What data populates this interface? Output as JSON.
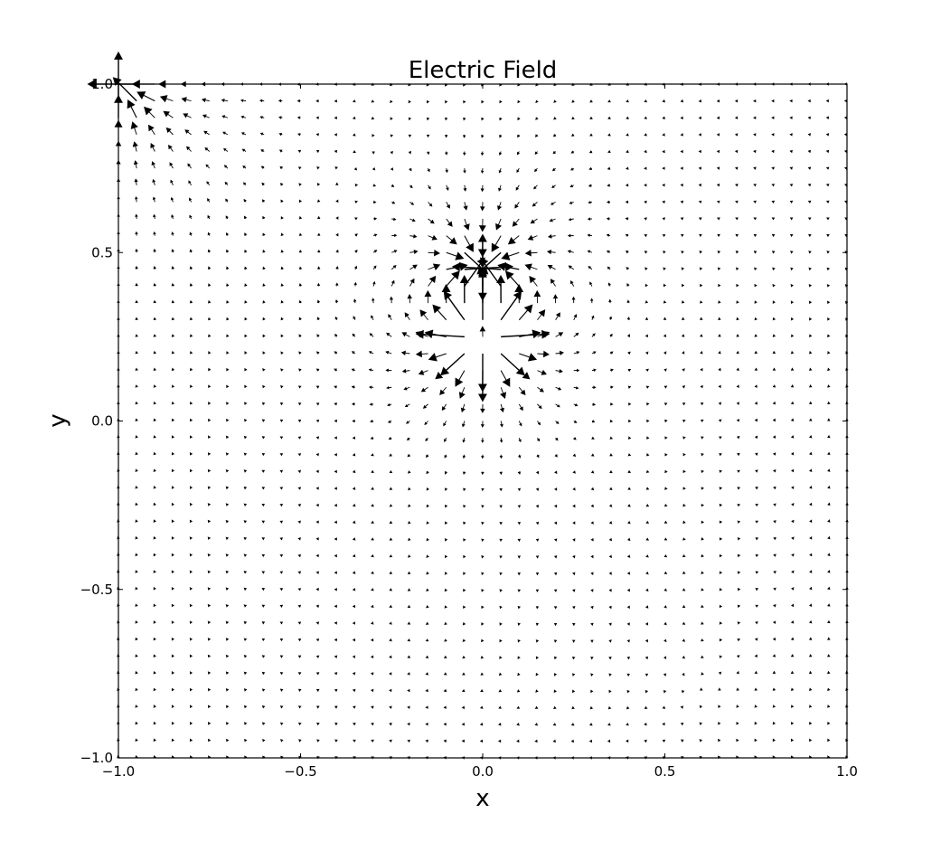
{
  "chart_data": {
    "type": "quiver",
    "title": "Electric Field",
    "xlabel": "x",
    "ylabel": "y",
    "xlim": [
      -1.0,
      1.0
    ],
    "ylim": [
      -1.0,
      1.0
    ],
    "xticks": [
      -1.0,
      -0.5,
      0.0,
      0.5,
      1.0
    ],
    "yticks": [
      -1.0,
      -0.5,
      0.0,
      0.5,
      1.0
    ],
    "xtick_labels": [
      "−1.0",
      "−0.5",
      "0.0",
      "0.5",
      "1.0"
    ],
    "ytick_labels": [
      "−1.0",
      "−0.5",
      "0.0",
      "0.5",
      "1.0"
    ],
    "grid": false,
    "colors": {
      "arrow": "#000000",
      "axes": "#000000",
      "background": "#ffffff"
    },
    "field": {
      "description_source": "vector field drawn on a 41 x 41 grid",
      "grid_x": {
        "start": -1.0,
        "stop": 1.0,
        "count": 41
      },
      "grid_y": {
        "start": -1.0,
        "stop": 1.0,
        "count": 41
      },
      "charges": [
        {
          "q": 1.0,
          "x": 0.0,
          "y": 0.25
        },
        {
          "q": -1.0,
          "x": 0.0,
          "y": 0.45
        },
        {
          "q": -1.0,
          "x": -1.0,
          "y": 1.0
        }
      ]
    }
  }
}
